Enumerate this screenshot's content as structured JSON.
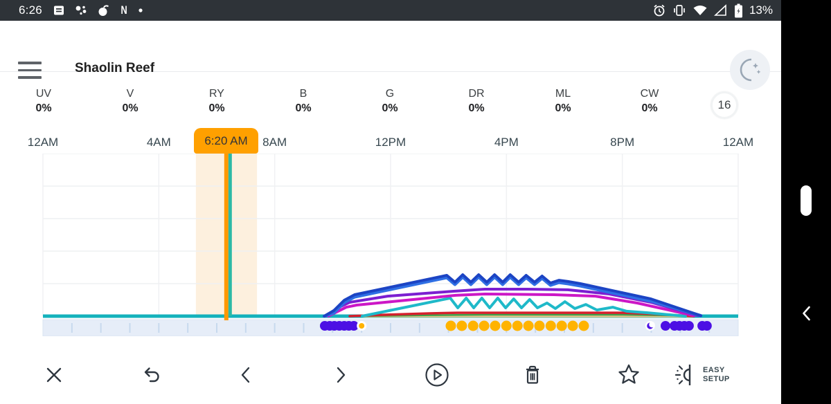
{
  "status_bar": {
    "time": "6:26",
    "battery_percent": "13%",
    "notification_icons": [
      "message-icon",
      "assistant-dots-icon",
      "bomb-icon",
      "netflix-n-icon",
      "dot-icon"
    ],
    "system_icons": [
      "alarm-icon",
      "vibrate-icon",
      "wifi-icon",
      "cell-signal-icon",
      "battery-charging-icon"
    ],
    "colors": {
      "background": "#2e3338",
      "foreground": "#ffffff"
    }
  },
  "app_bar": {
    "title": "Shaolin Reef",
    "moon_icon": "night-mode-moon-icon"
  },
  "channels": [
    {
      "label": "UV",
      "value": "0%"
    },
    {
      "label": "V",
      "value": "0%"
    },
    {
      "label": "RY",
      "value": "0%"
    },
    {
      "label": "B",
      "value": "0%"
    },
    {
      "label": "G",
      "value": "0%"
    },
    {
      "label": "DR",
      "value": "0%"
    },
    {
      "label": "ML",
      "value": "0%"
    },
    {
      "label": "CW",
      "value": "0%"
    }
  ],
  "day_badge": "16",
  "toolbar": {
    "buttons": [
      "close",
      "undo",
      "previous",
      "next",
      "play",
      "delete",
      "favorite",
      "easy-setup"
    ],
    "easy_setup_line1": "EASY",
    "easy_setup_line2": "SETUP"
  },
  "side_panel": {
    "back_icon": "back-chevron-icon",
    "scrollbar": "scroll-pill"
  },
  "chart_data": {
    "type": "line",
    "title": "24-hour light schedule",
    "x_unit": "hour_of_day",
    "x_range": [
      0,
      24
    ],
    "y_unit": "percent_intensity",
    "y_range": [
      0,
      100
    ],
    "grid": true,
    "grid_percent_lines": [
      0,
      20,
      40,
      60,
      80,
      100
    ],
    "x_tick_labels": [
      {
        "hour": 0,
        "label": "12AM"
      },
      {
        "hour": 4,
        "label": "4AM"
      },
      {
        "hour": 8,
        "label": "8AM"
      },
      {
        "hour": 12,
        "label": "12PM"
      },
      {
        "hour": 16,
        "label": "4PM"
      },
      {
        "hour": 20,
        "label": "8PM"
      },
      {
        "hour": 24,
        "label": "12AM"
      }
    ],
    "current_time": {
      "label": "6:20 AM",
      "hour": 6.33,
      "band_start_hour": 5.28,
      "band_end_hour": 7.39,
      "band_color": "#fdf0de",
      "line_color_left": "#ff9800",
      "line_color_right": "#2cb9a6",
      "badge_color": "#ffa000"
    },
    "baseline_color": "#14b2bc",
    "band_color": "#e6edf8",
    "tick_color": "#c7d9ee",
    "series": [
      {
        "name": "khaki",
        "color": "#d5c28b",
        "width": 4,
        "points": [
          [
            11.07,
            0
          ],
          [
            22.42,
            0
          ]
        ]
      },
      {
        "name": "green",
        "color": "#3da24a",
        "width": 2.5,
        "points": [
          [
            10.83,
            0
          ],
          [
            13.34,
            0.6
          ],
          [
            15.25,
            0.9
          ],
          [
            20.03,
            0.9
          ],
          [
            22.42,
            0.2
          ]
        ]
      },
      {
        "name": "red",
        "color": "#d4202c",
        "width": 3.5,
        "points": [
          [
            10.59,
            0
          ],
          [
            11.9,
            0.9
          ],
          [
            13.34,
            1.7
          ],
          [
            14.3,
            2.1
          ],
          [
            20.03,
            2.1
          ],
          [
            21.11,
            1.3
          ],
          [
            22.06,
            0.4
          ],
          [
            22.47,
            0
          ]
        ]
      },
      {
        "name": "teal",
        "color": "#1fb9c9",
        "width": 4,
        "points": [
          [
            11.02,
            0
          ],
          [
            14.06,
            11.1
          ],
          [
            14.32,
            5.1
          ],
          [
            14.61,
            11.1
          ],
          [
            14.87,
            5.1
          ],
          [
            15.15,
            11.1
          ],
          [
            15.42,
            5.1
          ],
          [
            15.7,
            11.1
          ],
          [
            15.97,
            5.1
          ],
          [
            16.25,
            10.6
          ],
          [
            16.52,
            5.1
          ],
          [
            16.8,
            10.2
          ],
          [
            17.07,
            5.1
          ],
          [
            17.4,
            8.1
          ],
          [
            17.69,
            4.7
          ],
          [
            18.02,
            8.9
          ],
          [
            18.36,
            4.7
          ],
          [
            18.74,
            7.2
          ],
          [
            19.12,
            3.8
          ],
          [
            19.67,
            5.5
          ],
          [
            20.15,
            3
          ],
          [
            20.87,
            2.1
          ],
          [
            21.59,
            0.9
          ],
          [
            22.18,
            0
          ]
        ]
      },
      {
        "name": "magenta",
        "color": "#cc17c6",
        "width": 4,
        "points": [
          [
            9.85,
            0
          ],
          [
            10.47,
            5.5
          ],
          [
            10.83,
            6.8
          ],
          [
            14.25,
            12.8
          ],
          [
            15.25,
            13.6
          ],
          [
            17.64,
            13.2
          ],
          [
            19.07,
            12.3
          ],
          [
            20.51,
            8.1
          ],
          [
            21.47,
            4.3
          ],
          [
            22.47,
            0.3
          ]
        ]
      },
      {
        "name": "purple",
        "color": "#7b1fd1",
        "width": 4,
        "points": [
          [
            9.75,
            0
          ],
          [
            10.18,
            5.1
          ],
          [
            10.59,
            8.5
          ],
          [
            11.9,
            12.3
          ],
          [
            14.18,
            15.3
          ],
          [
            15.25,
            16.6
          ],
          [
            16.68,
            16.6
          ],
          [
            18.12,
            16.2
          ],
          [
            19.55,
            13.6
          ],
          [
            20.99,
            8.5
          ],
          [
            22.61,
            0.3
          ]
        ]
      },
      {
        "name": "blue-outer",
        "color": "#2f6fe4",
        "width": 4.5,
        "offset_from": "blue",
        "offset_pct": -1.4
      },
      {
        "name": "blue",
        "color": "#1c44c4",
        "width": 4,
        "points": [
          [
            9.71,
            0
          ],
          [
            10.04,
            3.4
          ],
          [
            10.4,
            9.8
          ],
          [
            10.76,
            13.2
          ],
          [
            13.94,
            25.1
          ],
          [
            14.22,
            20.9
          ],
          [
            14.49,
            25.5
          ],
          [
            14.77,
            20.9
          ],
          [
            15.04,
            25.5
          ],
          [
            15.32,
            20.9
          ],
          [
            15.59,
            25.5
          ],
          [
            15.87,
            20.9
          ],
          [
            16.13,
            25.5
          ],
          [
            16.42,
            20.9
          ],
          [
            16.68,
            25.1
          ],
          [
            16.97,
            20.9
          ],
          [
            17.23,
            24.7
          ],
          [
            17.52,
            20.4
          ],
          [
            17.81,
            22.1
          ],
          [
            18.12,
            21.3
          ],
          [
            18.55,
            20
          ],
          [
            20.99,
            10.6
          ],
          [
            22.71,
            0.3
          ]
        ]
      }
    ],
    "marker_dots": [
      {
        "name": "indigo-morning-dots",
        "color": "#4c10e4",
        "radius": 7,
        "hours": [
          9.73,
          9.9,
          10.06,
          10.23,
          10.4,
          10.56,
          10.73
        ]
      },
      {
        "name": "orange-ring-dot",
        "color": "#ffb300",
        "radius": 4,
        "ring": "#ffffff",
        "hours": [
          11.0
        ]
      },
      {
        "name": "orange-midday-dots",
        "color": "#ffb300",
        "radius": 7.5,
        "hours": [
          14.08,
          14.46,
          14.85,
          15.23,
          15.61,
          16.0,
          16.38,
          16.76,
          17.14,
          17.53,
          17.91,
          18.29,
          18.67
        ]
      },
      {
        "name": "indigo-evening-dots",
        "color": "#4c10e4",
        "radius": 7,
        "hours": [
          21.49,
          21.8,
          21.97,
          22.14,
          22.3,
          22.76,
          22.92
        ]
      }
    ],
    "moon_marker_hour": 20.96
  }
}
